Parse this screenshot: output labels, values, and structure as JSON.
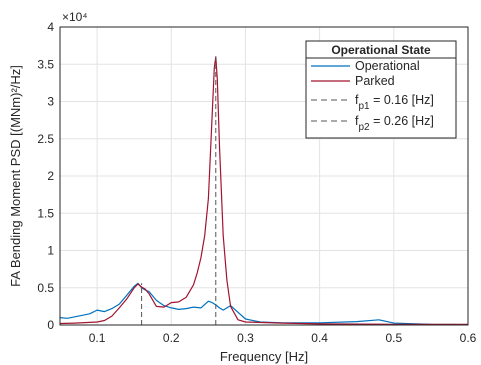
{
  "chart_data": {
    "type": "line",
    "title": "",
    "xlabel": "Frequency [Hz]",
    "ylabel": "FA Bending Moment PSD [(MNm)²/Hz]",
    "xlim": [
      0.05,
      0.6
    ],
    "ylim": [
      0,
      40000
    ],
    "y_multiplier": "×10⁴",
    "xticks": [
      "0.1",
      "0.2",
      "0.3",
      "0.4",
      "0.5",
      "0.6"
    ],
    "yticks": [
      "0",
      "0.5",
      "1",
      "1.5",
      "2",
      "2.5",
      "3",
      "3.5",
      "4"
    ],
    "grid": true,
    "legend": {
      "title": "Operational State",
      "placement": "top-right",
      "entries": [
        {
          "label": "Operational",
          "color": "#0072BD",
          "style": "solid"
        },
        {
          "label": "Parked",
          "color": "#A2142F",
          "style": "solid"
        },
        {
          "label_main": "f",
          "label_sub": "p1",
          "label_rest": " = 0.16 [Hz]",
          "color": "#555555",
          "style": "dashed"
        },
        {
          "label_main": "f",
          "label_sub": "p2",
          "label_rest": " = 0.26 [Hz]",
          "color": "#555555",
          "style": "dashed"
        }
      ]
    },
    "series": [
      {
        "name": "Operational",
        "color": "#0072BD",
        "x": [
          0.05,
          0.06,
          0.07,
          0.08,
          0.09,
          0.1,
          0.11,
          0.12,
          0.13,
          0.14,
          0.15,
          0.155,
          0.16,
          0.165,
          0.17,
          0.18,
          0.19,
          0.2,
          0.21,
          0.22,
          0.23,
          0.24,
          0.25,
          0.255,
          0.26,
          0.265,
          0.27,
          0.28,
          0.29,
          0.3,
          0.32,
          0.35,
          0.4,
          0.45,
          0.48,
          0.5,
          0.55,
          0.6
        ],
        "y": [
          1000,
          900,
          1100,
          1300,
          1500,
          2000,
          1800,
          2200,
          2800,
          4000,
          5200,
          5600,
          5000,
          4700,
          4500,
          3300,
          2600,
          2300,
          2100,
          2200,
          2400,
          2300,
          3200,
          3000,
          2700,
          2300,
          2000,
          2600,
          1700,
          800,
          400,
          300,
          300,
          450,
          700,
          250,
          100,
          50
        ]
      },
      {
        "name": "Parked",
        "color": "#A2142F",
        "x": [
          0.05,
          0.07,
          0.09,
          0.1,
          0.11,
          0.12,
          0.13,
          0.14,
          0.15,
          0.155,
          0.16,
          0.165,
          0.17,
          0.18,
          0.19,
          0.2,
          0.21,
          0.22,
          0.23,
          0.235,
          0.24,
          0.245,
          0.25,
          0.255,
          0.258,
          0.26,
          0.262,
          0.265,
          0.27,
          0.275,
          0.28,
          0.29,
          0.3,
          0.35,
          0.4,
          0.5,
          0.6
        ],
        "y": [
          200,
          250,
          350,
          400,
          600,
          1200,
          2300,
          3500,
          5000,
          5500,
          5100,
          4800,
          4200,
          2500,
          2400,
          3000,
          3100,
          3700,
          5400,
          7000,
          9000,
          12000,
          17000,
          28000,
          34500,
          36000,
          33000,
          24000,
          12000,
          6000,
          2500,
          700,
          400,
          250,
          150,
          100,
          80
        ]
      }
    ],
    "vlines": [
      {
        "x": 0.16,
        "y": 5600,
        "label": "fp1"
      },
      {
        "x": 0.26,
        "y": 36000,
        "label": "fp2"
      }
    ]
  }
}
